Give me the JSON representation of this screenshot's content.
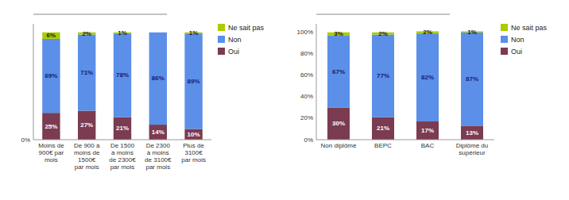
{
  "chart_data": [
    {
      "type": "bar",
      "stacked": true,
      "data_labels": true,
      "grid": false,
      "legend": "right",
      "categories": [
        "Moins de\n900€ par\nmois",
        "De 900 à\nmoins de\n1500€\npar mois",
        "De 1500\nà moins\nde 2300€\npar mois",
        "De 2300\nà moins\nde 3100€\npar mois",
        "Plus de\n3100€\npar mois"
      ],
      "series": [
        {
          "name": "Oui",
          "color": "#7B3B50",
          "values": [
            25,
            27,
            21,
            14,
            10
          ],
          "value_labels": [
            "25%",
            "27%",
            "21%",
            "14%",
            "10%"
          ]
        },
        {
          "name": "Non",
          "color": "#5B8FE8",
          "values": [
            69,
            71,
            78,
            86,
            89
          ],
          "value_labels": [
            "69%",
            "71%",
            "78%",
            "86%",
            "89%"
          ]
        },
        {
          "name": "Ne sait pas",
          "color": "#AACC00",
          "values": [
            6,
            2,
            1,
            0,
            1
          ],
          "value_labels": [
            "6%",
            "2%",
            "1%",
            null,
            "1%"
          ]
        }
      ],
      "ylim": [
        0,
        108
      ],
      "yticks": [
        {
          "value": 0,
          "label": "0%"
        }
      ]
    },
    {
      "type": "bar",
      "stacked": true,
      "data_labels": true,
      "grid": false,
      "legend": "right",
      "categories": [
        "Non diplômé",
        "BEPC",
        "BAC",
        "Diplômé du\nsupérieur"
      ],
      "series": [
        {
          "name": "Oui",
          "color": "#7B3B50",
          "values": [
            30,
            21,
            17,
            13
          ],
          "value_labels": [
            "30%",
            "21%",
            "17%",
            "13%"
          ]
        },
        {
          "name": "Non",
          "color": "#5B8FE8",
          "values": [
            67,
            77,
            82,
            87
          ],
          "value_labels": [
            "67%",
            "77%",
            "82%",
            "87%"
          ]
        },
        {
          "name": "Ne sait pas",
          "color": "#AACC00",
          "values": [
            3,
            2,
            2,
            1
          ],
          "value_labels": [
            "3%",
            "2%",
            "2%",
            "1%"
          ]
        }
      ],
      "ylim": [
        0,
        108
      ],
      "yticks": [
        {
          "value": 0,
          "label": "0%"
        },
        {
          "value": 20,
          "label": "20%"
        },
        {
          "value": 40,
          "label": "40%"
        },
        {
          "value": 60,
          "label": "60%"
        },
        {
          "value": 80,
          "label": "80%"
        },
        {
          "value": 100,
          "label": "100%"
        }
      ]
    }
  ]
}
